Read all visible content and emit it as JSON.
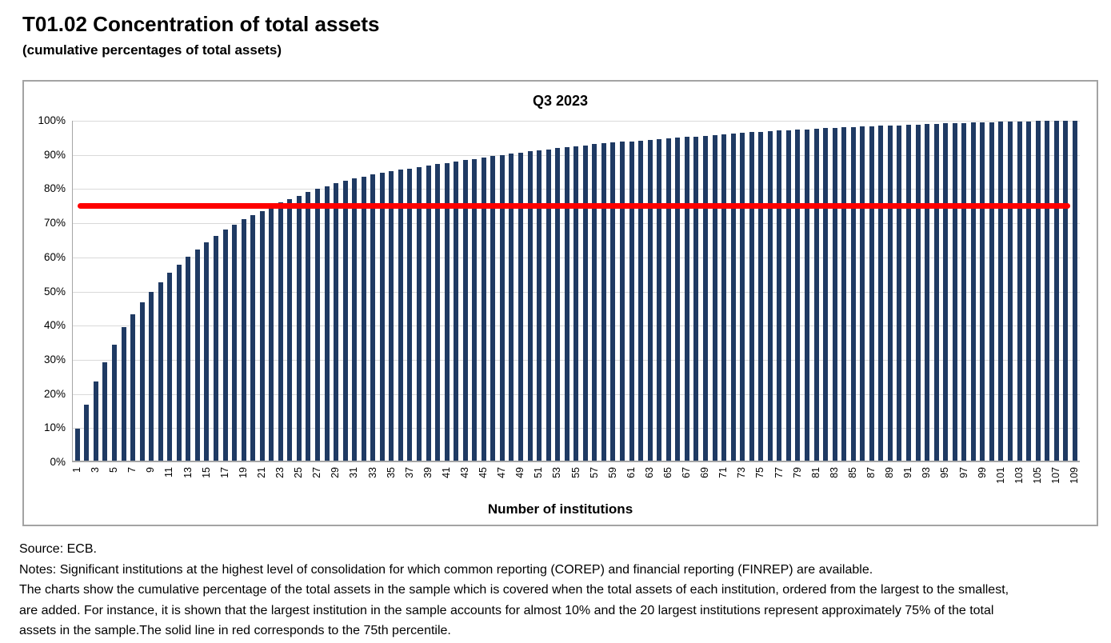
{
  "page": {
    "title": "T01.02 Concentration of total assets",
    "subtitle": "(cumulative percentages of total assets)"
  },
  "chart_data": {
    "type": "bar",
    "title": "Q3 2023",
    "xlabel": "Number of institutions",
    "ylabel": "",
    "ylim": [
      0,
      100
    ],
    "grid": true,
    "legend": "none",
    "bar_color": "#1f3a63",
    "gridline_color": "#d9d9d9",
    "ytick_labels": [
      "0%",
      "10%",
      "20%",
      "30%",
      "40%",
      "50%",
      "60%",
      "70%",
      "80%",
      "90%",
      "100%"
    ],
    "xtick_labels": [
      "1",
      "3",
      "5",
      "7",
      "9",
      "11",
      "13",
      "15",
      "17",
      "19",
      "21",
      "23",
      "25",
      "27",
      "29",
      "31",
      "33",
      "35",
      "37",
      "39",
      "41",
      "43",
      "45",
      "47",
      "49",
      "51",
      "53",
      "55",
      "57",
      "59",
      "61",
      "63",
      "65",
      "67",
      "69",
      "71",
      "73",
      "75",
      "77",
      "79",
      "81",
      "83",
      "85",
      "87",
      "89",
      "91",
      "93",
      "95",
      "97",
      "99",
      "101",
      "103",
      "105",
      "107",
      "109"
    ],
    "categories": [
      1,
      2,
      3,
      4,
      5,
      6,
      7,
      8,
      9,
      10,
      11,
      12,
      13,
      14,
      15,
      16,
      17,
      18,
      19,
      20,
      21,
      22,
      23,
      24,
      25,
      26,
      27,
      28,
      29,
      30,
      31,
      32,
      33,
      34,
      35,
      36,
      37,
      38,
      39,
      40,
      41,
      42,
      43,
      44,
      45,
      46,
      47,
      48,
      49,
      50,
      51,
      52,
      53,
      54,
      55,
      56,
      57,
      58,
      59,
      60,
      61,
      62,
      63,
      64,
      65,
      66,
      67,
      68,
      69,
      70,
      71,
      72,
      73,
      74,
      75,
      76,
      77,
      78,
      79,
      80,
      81,
      82,
      83,
      84,
      85,
      86,
      87,
      88,
      89,
      90,
      91,
      92,
      93,
      94,
      95,
      96,
      97,
      98,
      99,
      100,
      101,
      102,
      103,
      104,
      105,
      106,
      107,
      108,
      109
    ],
    "values": [
      9.5,
      16.5,
      23.3,
      29.0,
      34.2,
      39.2,
      43.1,
      46.6,
      49.7,
      52.5,
      55.2,
      57.6,
      60.0,
      62.1,
      64.2,
      66.2,
      68.0,
      69.5,
      71.0,
      72.3,
      73.5,
      74.6,
      75.9,
      77.0,
      78.0,
      79.0,
      79.9,
      80.8,
      81.6,
      82.3,
      83.0,
      83.6,
      84.2,
      84.7,
      85.2,
      85.6,
      86.0,
      86.4,
      86.8,
      87.2,
      87.6,
      88.0,
      88.4,
      88.8,
      89.2,
      89.6,
      90.0,
      90.4,
      90.7,
      91.0,
      91.3,
      91.6,
      91.9,
      92.2,
      92.5,
      92.8,
      93.1,
      93.4,
      93.6,
      93.8,
      94.0,
      94.2,
      94.4,
      94.6,
      94.8,
      95.0,
      95.2,
      95.4,
      95.6,
      95.8,
      96.0,
      96.2,
      96.4,
      96.6,
      96.8,
      97.0,
      97.1,
      97.2,
      97.4,
      97.5,
      97.7,
      97.8,
      98.0,
      98.1,
      98.2,
      98.3,
      98.4,
      98.5,
      98.6,
      98.7,
      98.8,
      98.9,
      99.0,
      99.1,
      99.2,
      99.3,
      99.4,
      99.5,
      99.6,
      99.6,
      99.7,
      99.7,
      99.8,
      99.8,
      99.9,
      99.9,
      99.9,
      100.0,
      100.0
    ],
    "reference_line": {
      "value": 75,
      "color": "#fe0000",
      "label": "75th percentile"
    }
  },
  "footer": {
    "lines": [
      "Source: ECB.",
      "Notes: Significant institutions at the highest level of consolidation for which common reporting (COREP) and financial reporting (FINREP) are available.",
      "The charts show the cumulative percentage of the total assets in the sample which is covered when the total assets of each institution, ordered from the largest to the smallest,",
      "are added. For instance, it is shown that the largest institution in the sample accounts for almost 10% and the 20 largest institutions represent approximately 75% of the total",
      "assets in the sample.The solid line in red corresponds to the 75th percentile."
    ]
  }
}
